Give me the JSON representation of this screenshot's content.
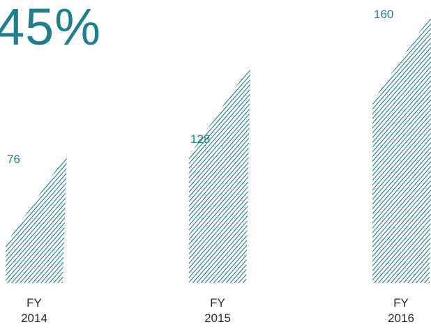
{
  "headline": {
    "value": "45%"
  },
  "colors": {
    "accent": "#1f7f8c",
    "text": "#2a2a2a",
    "background": "#ffffff"
  },
  "chart_data": {
    "type": "bar",
    "title": "",
    "xlabel": "",
    "ylabel": "",
    "categories": [
      [
        "FY",
        "2014"
      ],
      [
        "FY",
        "2015"
      ],
      [
        "FY",
        "2016"
      ]
    ],
    "values": [
      76,
      128,
      160
    ],
    "data_labels": [
      "76",
      "128",
      "160"
    ],
    "ylim": [
      0,
      160
    ],
    "grid": false,
    "legend": "none",
    "bar_fill": "diagonal-hatch",
    "bar_color": "#1f7f8c"
  }
}
